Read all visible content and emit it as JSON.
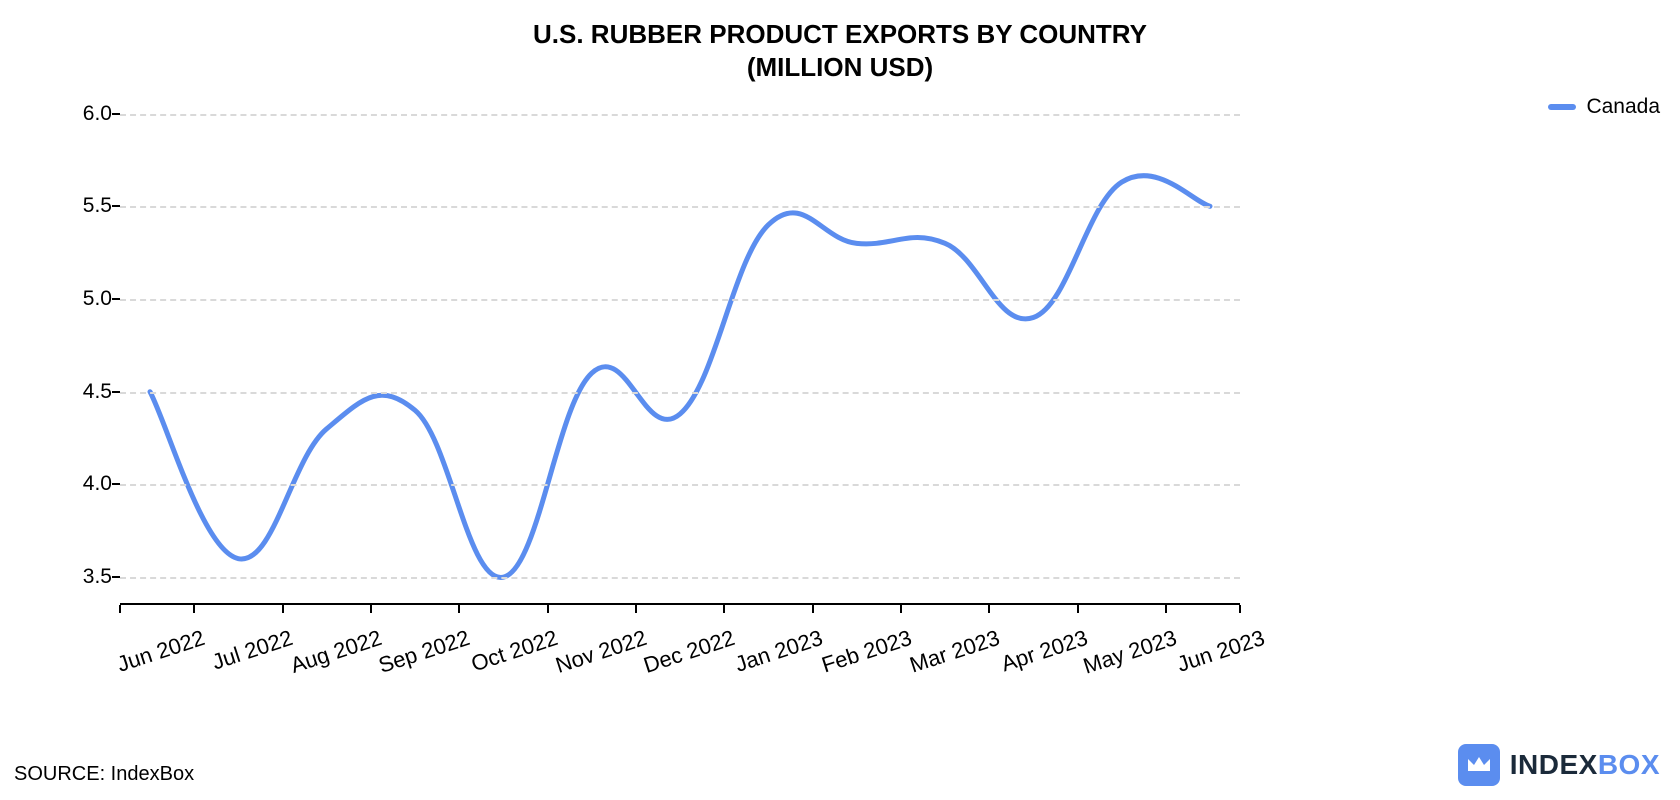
{
  "title_line1": "U.S. RUBBER PRODUCT EXPORTS BY COUNTRY",
  "title_line2": "(MILLION USD)",
  "title_fontsize": 26,
  "source_text": "SOURCE: IndexBox",
  "source_fontsize": 20,
  "brand": {
    "text_dark": "INDEX",
    "text_accent": "BOX",
    "dark_color": "#1b2a3a",
    "accent_color": "#5b8def",
    "icon_bg": "#5b8def",
    "fontsize": 28
  },
  "legend": {
    "label": "Canada",
    "color": "#5b8def",
    "fontsize": 21
  },
  "chart": {
    "type": "line",
    "background_color": "#ffffff",
    "grid_color": "#d9d9d9",
    "axis_color": "#000000",
    "line_color": "#5b8def",
    "line_width": 5,
    "ylim": [
      3.35,
      6.1
    ],
    "yticks": [
      3.5,
      4.0,
      4.5,
      5.0,
      5.5,
      6.0
    ],
    "ytick_labels": [
      "3.5",
      "4.0",
      "4.5",
      "5.0",
      "5.5",
      "6.0"
    ],
    "tick_fontsize": 21,
    "x_labels": [
      "Jun 2022",
      "Jul 2022",
      "Aug 2022",
      "Sep 2022",
      "Oct 2022",
      "Nov 2022",
      "Dec 2022",
      "Jan 2023",
      "Feb 2023",
      "Mar 2023",
      "Apr 2023",
      "May 2023",
      "Jun 2023"
    ],
    "x_label_fontsize": 22,
    "values": [
      4.5,
      3.6,
      4.3,
      4.4,
      3.5,
      4.6,
      4.38,
      5.4,
      5.3,
      5.3,
      4.9,
      5.63,
      5.5
    ],
    "smooth": true
  }
}
